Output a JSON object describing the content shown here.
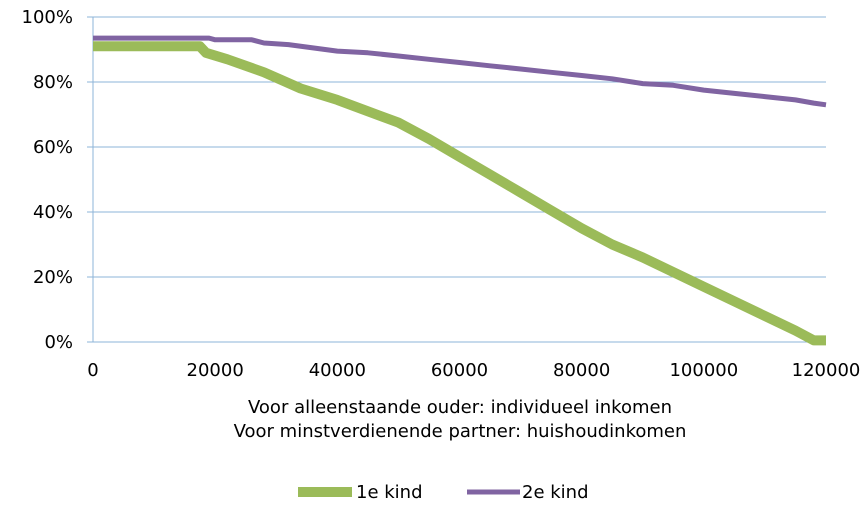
{
  "chart_data": {
    "type": "line",
    "title": "",
    "xlabel_lines": [
      "Voor alleenstaande ouder: individueel inkomen",
      "Voor minstverdienende partner: huishoudinkomen"
    ],
    "ylabel": "",
    "xlim": [
      0,
      120000
    ],
    "ylim": [
      0,
      1
    ],
    "x_ticks": [
      "0",
      "20000",
      "40000",
      "60000",
      "80000",
      "100000",
      "120000"
    ],
    "x_tick_values": [
      0,
      20000,
      40000,
      60000,
      80000,
      100000,
      120000
    ],
    "y_ticks": [
      "0%",
      "20%",
      "40%",
      "60%",
      "80%",
      "100%"
    ],
    "y_tick_values": [
      0,
      0.2,
      0.4,
      0.6,
      0.8,
      1.0
    ],
    "grid": "horizontal",
    "legend_position": "bottom",
    "series": [
      {
        "name": "1e kind",
        "color": "#9bbb59",
        "points": [
          [
            0,
            0.91
          ],
          [
            17500,
            0.91
          ],
          [
            18500,
            0.89
          ],
          [
            22000,
            0.87
          ],
          [
            28000,
            0.83
          ],
          [
            34000,
            0.78
          ],
          [
            40000,
            0.745
          ],
          [
            45000,
            0.71
          ],
          [
            50000,
            0.675
          ],
          [
            55000,
            0.625
          ],
          [
            60000,
            0.57
          ],
          [
            65000,
            0.515
          ],
          [
            70000,
            0.46
          ],
          [
            75000,
            0.405
          ],
          [
            80000,
            0.35
          ],
          [
            85000,
            0.3
          ],
          [
            90000,
            0.26
          ],
          [
            95000,
            0.215
          ],
          [
            100000,
            0.17
          ],
          [
            105000,
            0.125
          ],
          [
            110000,
            0.08
          ],
          [
            115000,
            0.035
          ],
          [
            118000,
            0.005
          ],
          [
            120000,
            0.005
          ]
        ]
      },
      {
        "name": "2e kind",
        "color": "#8064a2",
        "points": [
          [
            0,
            0.935
          ],
          [
            19000,
            0.935
          ],
          [
            20000,
            0.93
          ],
          [
            26000,
            0.93
          ],
          [
            28000,
            0.92
          ],
          [
            32000,
            0.915
          ],
          [
            36000,
            0.905
          ],
          [
            40000,
            0.895
          ],
          [
            45000,
            0.89
          ],
          [
            50000,
            0.88
          ],
          [
            55000,
            0.87
          ],
          [
            60000,
            0.86
          ],
          [
            65000,
            0.85
          ],
          [
            70000,
            0.84
          ],
          [
            75000,
            0.83
          ],
          [
            80000,
            0.82
          ],
          [
            85000,
            0.81
          ],
          [
            90000,
            0.795
          ],
          [
            95000,
            0.79
          ],
          [
            100000,
            0.775
          ],
          [
            105000,
            0.765
          ],
          [
            110000,
            0.755
          ],
          [
            115000,
            0.745
          ],
          [
            118000,
            0.735
          ],
          [
            120000,
            0.73
          ]
        ]
      }
    ]
  }
}
